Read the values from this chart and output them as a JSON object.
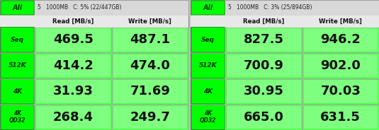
{
  "panels": [
    {
      "header_label": "All",
      "header_info": "5   1000MB   C: 5% (22/447GB)",
      "col_headers": [
        "Read [MB/s]",
        "Write [MB/s]"
      ],
      "rows": [
        {
          "label": "Seq",
          "read": "469.5",
          "write": "487.1"
        },
        {
          "label": "512K",
          "read": "414.2",
          "write": "474.0"
        },
        {
          "label": "4K",
          "read": "31.93",
          "write": "71.69"
        },
        {
          "label": "4K\nQD32",
          "read": "268.4",
          "write": "249.7"
        }
      ]
    },
    {
      "header_label": "All",
      "header_info": "5   1000MB   C: 3% (25/894GB)",
      "col_headers": [
        "Read [MB/s]",
        "Write [MB/s]"
      ],
      "rows": [
        {
          "label": "Seq",
          "read": "827.5",
          "write": "946.2"
        },
        {
          "label": "512K",
          "read": "700.9",
          "write": "902.0"
        },
        {
          "label": "4K",
          "read": "30.95",
          "write": "70.03"
        },
        {
          "label": "4K\nQD32",
          "read": "665.0",
          "write": "631.5"
        }
      ]
    }
  ],
  "green_bright": "#00ee00",
  "green_mid": "#33cc33",
  "green_dark": "#009900",
  "green_cell": "#22dd22",
  "white": "#ffffff",
  "black": "#000000",
  "gray_light": "#cccccc",
  "bg_color": "#d4d0c8",
  "header_bg": "#c8ffc8",
  "cell_bg": "#44ff44",
  "cell_bg2": "#66ff66",
  "divider": "#888888"
}
